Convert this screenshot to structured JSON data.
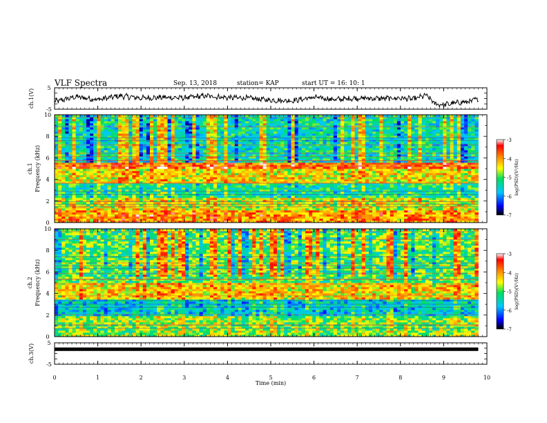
{
  "header": {
    "title": "VLF Spectra",
    "date": "Sep. 13, 2018",
    "station": "station= KAP",
    "start": "start  UT =   16: 10: 1"
  },
  "chart_data": [
    {
      "type": "line",
      "panel": "ch1-waveform",
      "ylabel": "ch.1(V)",
      "ylim": [
        -5,
        5
      ],
      "yticks": [
        "5",
        "-5"
      ],
      "xlim": [
        0,
        10
      ],
      "x": [
        0,
        0.5,
        1.0,
        1.5,
        2.0,
        2.5,
        3.0,
        3.5,
        4.0,
        4.5,
        5.0,
        5.5,
        6.0,
        6.5,
        7.0,
        7.5,
        8.0,
        8.3,
        8.6,
        8.8,
        9.0,
        9.3,
        9.6,
        9.8
      ],
      "y": [
        -1.5,
        0.8,
        -0.5,
        1.2,
        0.2,
        0.5,
        0.3,
        1.2,
        0.4,
        0.2,
        -0.8,
        -1.0,
        0.5,
        -0.5,
        0.2,
        0.0,
        0.2,
        -0.3,
        1.5,
        -2.5,
        -3.0,
        -2.0,
        -1.5,
        0.0
      ]
    },
    {
      "type": "heatmap",
      "panel": "ch1-spectrogram",
      "ylabel": "ch.1",
      "ylabel2": "Frequency (kHz)",
      "xlim": [
        0,
        10
      ],
      "ylim": [
        0,
        10
      ],
      "yticks": [
        "0",
        "2",
        "4",
        "6",
        "8",
        "10"
      ],
      "colorbar": {
        "label": "log(PSD)(V²/Hz)",
        "range": [
          -7,
          -3
        ],
        "ticks": [
          "-3",
          "-4",
          "-5",
          "-6",
          "-7"
        ]
      },
      "bands": [
        {
          "from": 0,
          "to": 1.2,
          "value": -4.0
        },
        {
          "from": 1.2,
          "to": 2.3,
          "value": -4.5
        },
        {
          "from": 2.3,
          "to": 3.6,
          "value": -5.3
        },
        {
          "from": 3.6,
          "to": 5.0,
          "value": -4.4
        },
        {
          "from": 5.0,
          "to": 5.5,
          "value": -3.8
        },
        {
          "from": 5.5,
          "to": 10,
          "value": -5.4
        }
      ]
    },
    {
      "type": "heatmap",
      "panel": "ch2-spectrogram",
      "ylabel": "ch.2",
      "ylabel2": "Frequency (kHz)",
      "xlim": [
        0,
        10
      ],
      "ylim": [
        0,
        10
      ],
      "yticks": [
        "0",
        "2",
        "4",
        "6",
        "8",
        "10"
      ],
      "colorbar": {
        "label": "log(PSD)(V²/Hz)",
        "range": [
          -7,
          -3
        ],
        "ticks": [
          "-3",
          "-4",
          "-5",
          "-6",
          "-7"
        ]
      },
      "bands": [
        {
          "from": 0,
          "to": 2.0,
          "value": -4.8
        },
        {
          "from": 2.0,
          "to": 3.5,
          "value": -5.6
        },
        {
          "from": 3.5,
          "to": 5.0,
          "value": -4.3
        },
        {
          "from": 5.0,
          "to": 10,
          "value": -5.0
        }
      ]
    },
    {
      "type": "line",
      "panel": "ch3-waveform",
      "ylabel": "ch.3(V)",
      "ylim": [
        -5,
        5
      ],
      "yticks": [
        "5",
        "-5"
      ],
      "xlim": [
        0,
        10
      ],
      "x": [
        0,
        9.8
      ],
      "y": [
        2,
        2
      ],
      "xlabel": "Time (min)",
      "xticks": [
        "0",
        "1",
        "2",
        "3",
        "4",
        "5",
        "6",
        "7",
        "8",
        "9",
        "10"
      ]
    }
  ]
}
